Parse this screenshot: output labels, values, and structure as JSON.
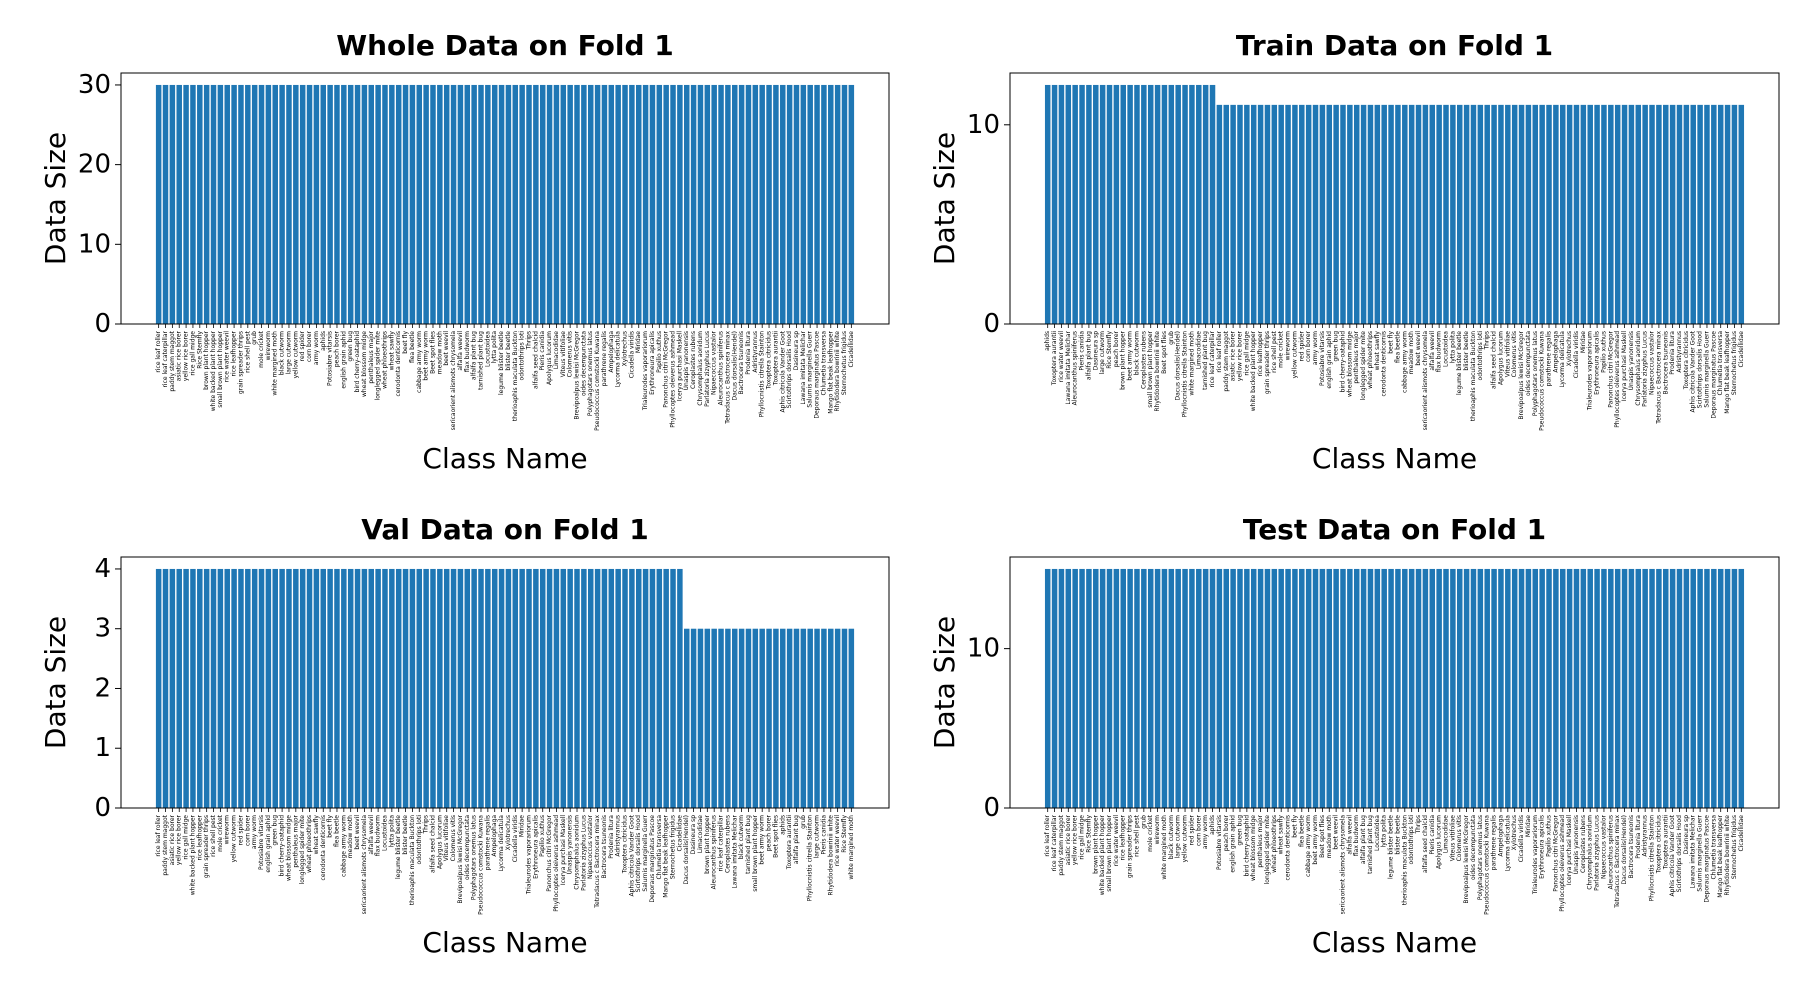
{
  "chart_data": [
    {
      "type": "bar",
      "title": "Whole Data on Fold 1",
      "xlabel": "Class Name",
      "ylabel": "Data Size",
      "color": "#1f77b4",
      "ylim": [
        0,
        31.5
      ],
      "yticks": [
        0,
        10,
        20,
        30
      ],
      "categories": [
        "rice leaf roller",
        "rice leaf caterpillar",
        "paddy stem maggot",
        "asiatic rice borer",
        "yellow rice borer",
        "rice gall midge",
        "Rice Stemfly",
        "brown plant hopper",
        "white backed plant hopper",
        "small brown plant hopper",
        "rice water weevil",
        "rice leafhopper",
        "grain spreader thrips",
        "rice shell pest",
        "grub",
        "mole cricket",
        "wireworm",
        "white margined moth",
        "black cutworm",
        "large cutworm",
        "yellow cutworm",
        "red spider",
        "corn borer",
        "army worm",
        "aphids",
        "Potosiabre vitarsis",
        "peach borer",
        "english grain aphid",
        "green bug",
        "bird cherry-oataphid",
        "wheat blossom midge",
        "penthaleus major",
        "longlegged spider mite",
        "wheat phloeothrips",
        "wheat sawfly",
        "cerodonta denticornis",
        "beet fly",
        "flea beetle",
        "cabbage army worm",
        "beet army worm",
        "Beet spot flies",
        "meadow moth",
        "beet weevil",
        "sericaorient alismots chrysomela",
        "alfalfa weevil",
        "flax budworm",
        "alfalfa plant bug",
        "tarnished plant bug",
        "Locustoidea",
        "lytta polita",
        "legume blister beetle",
        "blister beetle",
        "therioaphis maculata Buckton",
        "odontothrips loti",
        "Thrips",
        "alfalfa seed chalcid",
        "Pieris canidia",
        "Apolygus lucorum",
        "Limacodidae",
        "Viteus vitifoliae",
        "Colomerus vitis",
        "Brevipoalpus lewisi McGregor",
        "oides decempunctata",
        "Polyphagotars onemus latus",
        "Pseudococcus comstocki Kuwana",
        "parathrene regalis",
        "Ampelophaga",
        "Lycorma delicatula",
        "Xylotrechus",
        "Cicadella viridis",
        "Miridae",
        "Trialeurodes vaporariorum",
        "Erythroneura apicalis",
        "Papilio xuthus",
        "Panonchus citri McGregor",
        "Phyllocoptes oleiverus ashmead",
        "Icerya purchasi Maskell",
        "Unaspis yanonensis",
        "Ceroplastes rubens",
        "Chrysomphalus aonidum",
        "Parlatoria zizyphus Lucus",
        "Nipaecoccus vastalor",
        "Aleurocanthus spiniferus",
        "Tetradacus c Bactrocera minax",
        "Dacus dorsalis(Hendel)",
        "Bactrocera tsuneonis",
        "Prodenia litura",
        "Adristyrannus",
        "Phyllocnistis citrella Stainton",
        "Toxoptera citricidus",
        "Toxoptera aurantii",
        "Aphis citricola Vander Goot",
        "Scirtothrips dorsalis Hood",
        "Dasineura sp",
        "Lawana imitata Melichar",
        "Salurnis marginella Guerr",
        "Deporaus marginatus Pascoe",
        "Chlumetia transversa",
        "Mango flat beak leafhopper",
        "Rhytidodera bowrinii white",
        "Sternochetus frigidus",
        "Cicadellidae"
      ],
      "values": [
        30,
        30,
        30,
        30,
        30,
        30,
        30,
        30,
        30,
        30,
        30,
        30,
        30,
        30,
        30,
        30,
        30,
        30,
        30,
        30,
        30,
        30,
        30,
        30,
        30,
        30,
        30,
        30,
        30,
        30,
        30,
        30,
        30,
        30,
        30,
        30,
        30,
        30,
        30,
        30,
        30,
        30,
        30,
        30,
        30,
        30,
        30,
        30,
        30,
        30,
        30,
        30,
        30,
        30,
        30,
        30,
        30,
        30,
        30,
        30,
        30,
        30,
        30,
        30,
        30,
        30,
        30,
        30,
        30,
        30,
        30,
        30,
        30,
        30,
        30,
        30,
        30,
        30,
        30,
        30,
        30,
        30,
        30,
        30,
        30,
        30,
        30,
        30,
        30,
        30,
        30,
        30,
        30,
        30,
        30,
        30,
        30,
        30,
        30,
        30,
        30,
        30
      ]
    },
    {
      "type": "bar",
      "title": "Train Data on Fold 1",
      "xlabel": "Class Name",
      "ylabel": "Data Size",
      "color": "#1f77b4",
      "ylim": [
        0,
        12.6
      ],
      "yticks": [
        0,
        10
      ],
      "categories": [
        "aphids",
        "Toxoptera aurantii",
        "rice water weevil",
        "Lawana imitata Melichar",
        "Aleurocanthus spiniferus",
        "Pieris canidia",
        "alfalfa plant bug",
        "Dasineura sp",
        "large cutworm",
        "Rice Stemfly",
        "peach borer",
        "brown plant hopper",
        "beet army worm",
        "black cutworm",
        "Ceroplastes rubens",
        "small brown plant hopper",
        "Rhytidodera bowrinii white",
        "Beet spot flies",
        "grub",
        "Dacus dorsalis(Hendel)",
        "Phyllocnistis citrella Stainton",
        "white margined moth",
        "Limacodidae",
        "tarnished plant bug",
        "rice leaf caterpillar",
        "rice leaf roller",
        "paddy stem maggot",
        "asiatic rice borer",
        "yellow rice borer",
        "rice gall midge",
        "white backed plant hopper",
        "rice leafhopper",
        "grain spreader thrips",
        "rice shell pest",
        "mole cricket",
        "wireworm",
        "yellow cutworm",
        "red spider",
        "corn borer",
        "army worm",
        "Potosiabre vitarsis",
        "english grain aphid",
        "green bug",
        "bird cherry-oataphid",
        "wheat blossom midge",
        "penthaleus major",
        "longlegged spider mite",
        "wheat phloeothrips",
        "wheat sawfly",
        "cerodonta denticornis",
        "beet fly",
        "flea beetle",
        "cabbage army worm",
        "meadow moth",
        "beet weevil",
        "sericaorient alismots chrysomela",
        "alfalfa weevil",
        "flax budworm",
        "Locustoidea",
        "lytta polita",
        "legume blister beetle",
        "blister beetle",
        "therioaphis maculata Buckton",
        "odontothrips loti",
        "Thrips",
        "alfalfa seed chalcid",
        "Apolygus lucorum",
        "Viteus vitifoliae",
        "Colomerus vitis",
        "Brevipoalpus lewisi McGregor",
        "oides decempunctata",
        "Polyphagotars onemus latus",
        "Pseudococcus comstocki Kuwana",
        "parathrene regalis",
        "Ampelophaga",
        "Lycorma delicatula",
        "Xylotrechus",
        "Cicadella viridis",
        "Miridae",
        "Trialeurodes vaporariorum",
        "Erythroneura apicalis",
        "Papilio xuthus",
        "Panonchus citri McGregor",
        "Phyllocoptes oleiverus ashmead",
        "Icerya purchasi Maskell",
        "Unaspis yanonensis",
        "Chrysomphalus aonidum",
        "Parlatoria zizyphus Lucus",
        "Nipaecoccus vastalor",
        "Tetradacus c Bactrocera minax",
        "Bactrocera tsuneonis",
        "Prodenia litura",
        "Adristyrannus",
        "Toxoptera citricidus",
        "Aphis citricola Vander Goot",
        "Scirtothrips dorsalis Hood",
        "Salurnis marginella Guerr",
        "Deporaus marginatus Pascoe",
        "Chlumetia transversa",
        "Mango flat beak leafhopper",
        "Sternochetus frigidus",
        "Cicadellidae"
      ],
      "values": [
        12,
        12,
        12,
        12,
        12,
        12,
        12,
        12,
        12,
        12,
        12,
        12,
        12,
        12,
        12,
        12,
        12,
        12,
        12,
        12,
        12,
        12,
        12,
        12,
        12,
        11,
        11,
        11,
        11,
        11,
        11,
        11,
        11,
        11,
        11,
        11,
        11,
        11,
        11,
        11,
        11,
        11,
        11,
        11,
        11,
        11,
        11,
        11,
        11,
        11,
        11,
        11,
        11,
        11,
        11,
        11,
        11,
        11,
        11,
        11,
        11,
        11,
        11,
        11,
        11,
        11,
        11,
        11,
        11,
        11,
        11,
        11,
        11,
        11,
        11,
        11,
        11,
        11,
        11,
        11,
        11,
        11,
        11,
        11,
        11,
        11,
        11,
        11,
        11,
        11,
        11,
        11,
        11,
        11,
        11,
        11,
        11,
        11,
        11,
        11,
        11,
        11
      ]
    },
    {
      "type": "bar",
      "title": "Val Data on Fold 1",
      "xlabel": "Class Name",
      "ylabel": "Data Size",
      "color": "#1f77b4",
      "ylim": [
        0,
        4.2
      ],
      "yticks": [
        0,
        1,
        2,
        3,
        4
      ],
      "categories": [
        "rice leaf roller",
        "paddy stem maggot",
        "asiatic rice borer",
        "yellow rice borer",
        "rice gall midge",
        "white backed plant hopper",
        "rice leafhopper",
        "grain spreader thrips",
        "rice shell pest",
        "mole cricket",
        "wireworm",
        "yellow cutworm",
        "red spider",
        "corn borer",
        "army worm",
        "Potosiabre vitarsis",
        "english grain aphid",
        "green bug",
        "bird cherry-oataphid",
        "wheat blossom midge",
        "penthaleus major",
        "longlegged spider mite",
        "wheat phloeothrips",
        "wheat sawfly",
        "cerodonta denticornis",
        "beet fly",
        "flea beetle",
        "cabbage army worm",
        "meadow moth",
        "beet weevil",
        "sericaorient alismots chrysomela",
        "alfalfa weevil",
        "flax budworm",
        "Locustoidea",
        "lytta polita",
        "legume blister beetle",
        "blister beetle",
        "therioaphis maculata Buckton",
        "odontothrips loti",
        "Thrips",
        "alfalfa seed chalcid",
        "Apolygus lucorum",
        "Viteus vitifoliae",
        "Colomerus vitis",
        "Brevipoalpus lewisi McGregor",
        "oides decempunctata",
        "Polyphagotars onemus latus",
        "Pseudococcus comstocki Kuwana",
        "parathrene regalis",
        "Ampelophaga",
        "Lycorma delicatula",
        "Xylotrechus",
        "Cicadella viridis",
        "Miridae",
        "Trialeurodes vaporariorum",
        "Erythroneura apicalis",
        "Papilio xuthus",
        "Panonchus citri McGregor",
        "Phyllocoptes oleiverus ashmead",
        "Icerya purchasi Maskell",
        "Unaspis yanonensis",
        "Chrysomphalus aonidum",
        "Parlatoria zizyphus Lucus",
        "Nipaecoccus vastalor",
        "Tetradacus c Bactrocera minax",
        "Bactrocera tsuneonis",
        "Prodenia litura",
        "Adristyrannus",
        "Toxoptera citricidus",
        "Aphis citricola Vander Goot",
        "Scirtothrips dorsalis Hood",
        "Salurnis marginella Guerr",
        "Deporaus marginatus Pascoe",
        "Chlumetia transversa",
        "Mango flat beak leafhopper",
        "Sternochetus frigidus",
        "Cicadellidae",
        "Dacus dorsalis(Hendel)",
        "Dasineura sp",
        "Limacodidae",
        "brown plant hopper",
        "Aleurocanthus spiniferus",
        "rice leaf caterpillar",
        "Ceroplastes rubens",
        "Lawana imitata Melichar",
        "black cutworm",
        "tarnished plant bug",
        "small brown plant hopper",
        "beet army worm",
        "peach borer",
        "Beet spot flies",
        "aphids",
        "Toxoptera aurantii",
        "alfalfa plant bug",
        "grub",
        "Phyllocnistis citrella Stainton",
        "large cutworm",
        "Pieris canidia",
        "Rhytidodera bowrinii white",
        "rice water weevil",
        "Rice Stemfly",
        "white margined moth"
      ],
      "values": [
        4,
        4,
        4,
        4,
        4,
        4,
        4,
        4,
        4,
        4,
        4,
        4,
        4,
        4,
        4,
        4,
        4,
        4,
        4,
        4,
        4,
        4,
        4,
        4,
        4,
        4,
        4,
        4,
        4,
        4,
        4,
        4,
        4,
        4,
        4,
        4,
        4,
        4,
        4,
        4,
        4,
        4,
        4,
        4,
        4,
        4,
        4,
        4,
        4,
        4,
        4,
        4,
        4,
        4,
        4,
        4,
        4,
        4,
        4,
        4,
        4,
        4,
        4,
        4,
        4,
        4,
        4,
        4,
        4,
        4,
        4,
        4,
        4,
        4,
        4,
        4,
        4,
        3,
        3,
        3,
        3,
        3,
        3,
        3,
        3,
        3,
        3,
        3,
        3,
        3,
        3,
        3,
        3,
        3,
        3,
        3,
        3,
        3,
        3,
        3,
        3,
        3
      ]
    },
    {
      "type": "bar",
      "title": "Test Data on Fold 1",
      "xlabel": "Class Name",
      "ylabel": "Data Size",
      "color": "#1f77b4",
      "ylim": [
        0,
        15.75
      ],
      "yticks": [
        0,
        10
      ],
      "categories": [
        "rice leaf roller",
        "rice leaf caterpillar",
        "paddy stem maggot",
        "asiatic rice borer",
        "yellow rice borer",
        "rice gall midge",
        "Rice Stemfly",
        "brown plant hopper",
        "white backed plant hopper",
        "small brown plant hopper",
        "rice water weevil",
        "rice leafhopper",
        "grain spreader thrips",
        "rice shell pest",
        "grub",
        "mole cricket",
        "wireworm",
        "white margined moth",
        "black cutworm",
        "large cutworm",
        "yellow cutworm",
        "red spider",
        "corn borer",
        "army worm",
        "aphids",
        "Potosiabre vitarsis",
        "peach borer",
        "english grain aphid",
        "green bug",
        "bird cherry-oataphid",
        "wheat blossom midge",
        "penthaleus major",
        "longlegged spider mite",
        "wheat phloeothrips",
        "wheat sawfly",
        "cerodonta denticornis",
        "beet fly",
        "flea beetle",
        "cabbage army worm",
        "beet army worm",
        "Beet spot flies",
        "meadow moth",
        "beet weevil",
        "sericaorient alismots chrysomela",
        "alfalfa weevil",
        "flax budworm",
        "alfalfa plant bug",
        "tarnished plant bug",
        "Locustoidea",
        "lytta polita",
        "legume blister beetle",
        "blister beetle",
        "therioaphis maculata Buckton",
        "odontothrips loti",
        "Thrips",
        "alfalfa seed chalcid",
        "Pieris canidia",
        "Apolygus lucorum",
        "Limacodidae",
        "Viteus vitifoliae",
        "Colomerus vitis",
        "Brevipoalpus lewisi McGregor",
        "oides decempunctata",
        "Polyphagotars onemus latus",
        "Pseudococcus comstocki Kuwana",
        "parathrene regalis",
        "Ampelophaga",
        "Lycorma delicatula",
        "Xylotrechus",
        "Cicadella viridis",
        "Miridae",
        "Trialeurodes vaporariorum",
        "Erythroneura apicalis",
        "Papilio xuthus",
        "Panonchus citri McGregor",
        "Phyllocoptes oleiverus ashmead",
        "Icerya purchasi Maskell",
        "Unaspis yanonensis",
        "Ceroplastes rubens",
        "Chrysomphalus aonidum",
        "Parlatoria zizyphus Lucus",
        "Nipaecoccus vastalor",
        "Aleurocanthus spiniferus",
        "Tetradacus c Bactrocera minax",
        "Dacus dorsalis(Hendel)",
        "Bactrocera tsuneonis",
        "Prodenia litura",
        "Adristyrannus",
        "Phyllocnistis citrella Stainton",
        "Toxoptera citricidus",
        "Toxoptera aurantii",
        "Aphis citricola Vander Goot",
        "Scirtothrips dorsalis Hood",
        "Dasineura sp",
        "Lawana imitata Melichar",
        "Salurnis marginella Guerr",
        "Deporaus marginatus Pascoe",
        "Chlumetia transversa",
        "Mango flat beak leafhopper",
        "Rhytidodera bowrinii white",
        "Sternochetus frigidus",
        "Cicadellidae"
      ],
      "values": [
        15,
        15,
        15,
        15,
        15,
        15,
        15,
        15,
        15,
        15,
        15,
        15,
        15,
        15,
        15,
        15,
        15,
        15,
        15,
        15,
        15,
        15,
        15,
        15,
        15,
        15,
        15,
        15,
        15,
        15,
        15,
        15,
        15,
        15,
        15,
        15,
        15,
        15,
        15,
        15,
        15,
        15,
        15,
        15,
        15,
        15,
        15,
        15,
        15,
        15,
        15,
        15,
        15,
        15,
        15,
        15,
        15,
        15,
        15,
        15,
        15,
        15,
        15,
        15,
        15,
        15,
        15,
        15,
        15,
        15,
        15,
        15,
        15,
        15,
        15,
        15,
        15,
        15,
        15,
        15,
        15,
        15,
        15,
        15,
        15,
        15,
        15,
        15,
        15,
        15,
        15,
        15,
        15,
        15,
        15,
        15,
        15,
        15,
        15,
        15,
        15,
        15
      ]
    }
  ]
}
